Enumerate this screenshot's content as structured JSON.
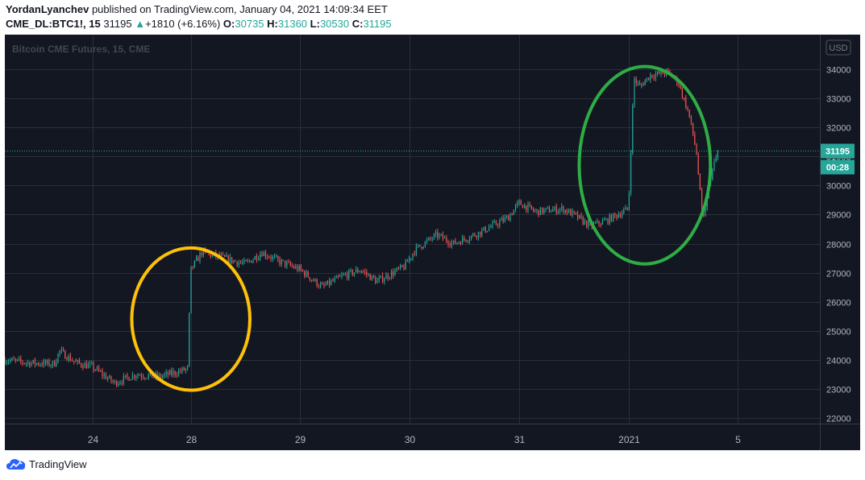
{
  "header": {
    "author": "YordanLyanchev",
    "published_text": "published on TradingView.com, January 04, 2021 14:09:34 EET",
    "symbol": "CME_DL:BTC1!, 15",
    "last": "31195",
    "change": "+1810 (+6.16%)",
    "o_label": "O:",
    "o_value": "30735",
    "h_label": "H:",
    "h_value": "31360",
    "l_label": "L:",
    "l_value": "30530",
    "c_label": "C:",
    "c_value": "31195"
  },
  "footer": {
    "brand": "TradingView",
    "logo_icon": "tradingview-logo-icon"
  },
  "chart_data": {
    "type": "candlestick",
    "watermark": "Bitcoin CME Futures, 15, CME",
    "currency_label": "USD",
    "price_label": "31195",
    "countdown_label": "00:28",
    "last_price": 31195,
    "ylim": [
      21800,
      35200
    ],
    "y_ticks": [
      22000,
      23000,
      24000,
      25000,
      26000,
      27000,
      28000,
      29000,
      30000,
      31000,
      32000,
      33000,
      34000
    ],
    "x_ticks": [
      "24",
      "28",
      "29",
      "30",
      "31",
      "2021",
      "5"
    ],
    "x_tick_positions": [
      0.6,
      1.5,
      2.5,
      3.5,
      4.5,
      5.5,
      6.5
    ],
    "xlim": [
      -0.2,
      7.25
    ],
    "price_path": [
      [
        -0.2,
        24000
      ],
      [
        0.0,
        23900
      ],
      [
        0.25,
        23850
      ],
      [
        0.3,
        24300
      ],
      [
        0.45,
        23900
      ],
      [
        0.6,
        23750
      ],
      [
        0.8,
        23200
      ],
      [
        1.0,
        23500
      ],
      [
        1.2,
        23400
      ],
      [
        1.4,
        23600
      ],
      [
        1.47,
        23700
      ],
      [
        1.5,
        27100
      ],
      [
        1.6,
        27700
      ],
      [
        1.8,
        27500
      ],
      [
        2.0,
        27300
      ],
      [
        2.15,
        27700
      ],
      [
        2.3,
        27400
      ],
      [
        2.5,
        27100
      ],
      [
        2.7,
        26500
      ],
      [
        2.9,
        26900
      ],
      [
        3.05,
        27100
      ],
      [
        3.2,
        26700
      ],
      [
        3.45,
        27200
      ],
      [
        3.55,
        27800
      ],
      [
        3.75,
        28300
      ],
      [
        3.9,
        28000
      ],
      [
        4.15,
        28400
      ],
      [
        4.4,
        28900
      ],
      [
        4.5,
        29400
      ],
      [
        4.65,
        29100
      ],
      [
        4.9,
        29200
      ],
      [
        5.0,
        29000
      ],
      [
        5.15,
        28600
      ],
      [
        5.3,
        28800
      ],
      [
        5.45,
        29100
      ],
      [
        5.5,
        29200
      ],
      [
        5.55,
        33700
      ],
      [
        5.6,
        33400
      ],
      [
        5.7,
        33800
      ],
      [
        5.85,
        33900
      ],
      [
        5.95,
        33600
      ],
      [
        6.05,
        32500
      ],
      [
        6.12,
        31200
      ],
      [
        6.18,
        28700
      ],
      [
        6.25,
        30300
      ],
      [
        6.32,
        31195
      ]
    ],
    "annotations": [
      {
        "type": "ellipse",
        "color": "#ffc107",
        "cx": 1.5,
        "cy": 25400,
        "rx": 0.54,
        "ry": 2450
      },
      {
        "type": "ellipse",
        "color": "#2fad45",
        "cx": 5.65,
        "cy": 30700,
        "rx": 0.6,
        "ry": 3400
      }
    ],
    "colors": {
      "background": "#131722",
      "grid": "#2a2e39",
      "up": "#26a69a",
      "down": "#ef5350",
      "axis_text": "#b2b5be"
    }
  }
}
